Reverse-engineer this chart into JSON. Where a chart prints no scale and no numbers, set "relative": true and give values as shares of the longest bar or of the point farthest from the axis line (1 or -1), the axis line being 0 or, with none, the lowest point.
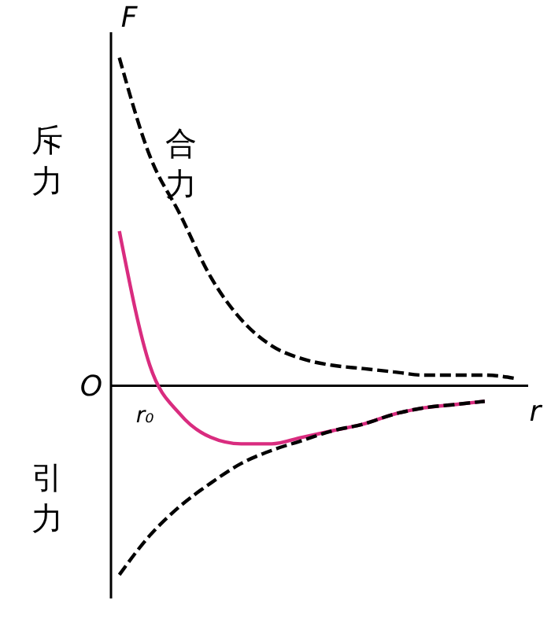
{
  "chart_data": {
    "type": "line",
    "relative": true,
    "xlabel": "r",
    "ylabel": "F",
    "categories": [
      null,
      null,
      null,
      null,
      null,
      null,
      null,
      null,
      null,
      null,
      null,
      null,
      null,
      null
    ],
    "series": [
      {
        "color": "#000000",
        "line_style": "dashed",
        "values": [
          1,
          0.7,
          0.52,
          0.33,
          0.2,
          0.12,
          0.08,
          0.06,
          0.05,
          0.04,
          0.03,
          0.03,
          0.03,
          0.02
        ]
      },
      {
        "color": "#000000",
        "line_style": "dashed",
        "values": [
          -0.58,
          -0.46,
          -0.37,
          -0.3,
          -0.24,
          -0.2,
          -0.17,
          -0.14,
          -0.12,
          -0.09,
          -0.07,
          -0.06,
          -0.05,
          null
        ]
      },
      {
        "name": "合力",
        "color": "#d92c7f",
        "line_style": "solid",
        "values": [
          0.47,
          0.06,
          -0.09,
          -0.16,
          -0.18,
          -0.18,
          -0.16,
          -0.14,
          -0.12,
          -0.09,
          -0.07,
          -0.06,
          -0.05,
          null
        ]
      }
    ],
    "annotations": [
      "O",
      "r₀",
      "斥力",
      "引力"
    ],
    "legend": false,
    "marker": "none"
  }
}
